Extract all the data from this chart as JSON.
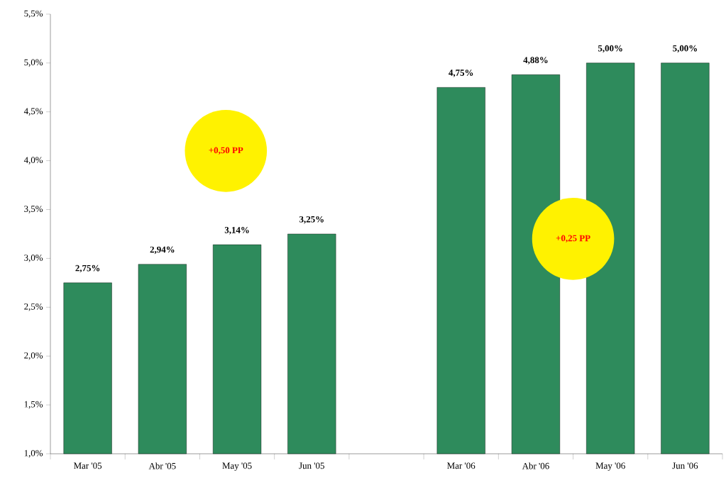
{
  "chart_data": {
    "type": "bar",
    "categories": [
      "Mar '05",
      "Abr '05",
      "May '05",
      "Jun '05",
      null,
      "Mar '06",
      "Abr '06",
      "May '06",
      "Jun '06"
    ],
    "values": [
      2.75,
      2.94,
      3.14,
      3.25,
      null,
      4.75,
      4.88,
      5.0,
      5.0
    ],
    "value_labels": [
      "2,75%",
      "2,94%",
      "3,14%",
      "3,25%",
      null,
      "4,75%",
      "4,88%",
      "5,00%",
      "5,00%"
    ],
    "color": "#2e8b5c",
    "ylim": [
      1.0,
      5.5
    ],
    "yticks": [
      {
        "value": 1.0,
        "label": "1,0%"
      },
      {
        "value": 1.5,
        "label": "1,5%"
      },
      {
        "value": 2.0,
        "label": "2,0%"
      },
      {
        "value": 2.5,
        "label": "2,5%"
      },
      {
        "value": 3.0,
        "label": "3,0%"
      },
      {
        "value": 3.5,
        "label": "3,5%"
      },
      {
        "value": 4.0,
        "label": "4,0%"
      },
      {
        "value": 4.5,
        "label": "4,5%"
      },
      {
        "value": 5.0,
        "label": "5,0%"
      },
      {
        "value": 5.5,
        "label": "5,5%"
      }
    ],
    "annotations": [
      "+0,50 PP",
      "+0,25 PP"
    ]
  }
}
